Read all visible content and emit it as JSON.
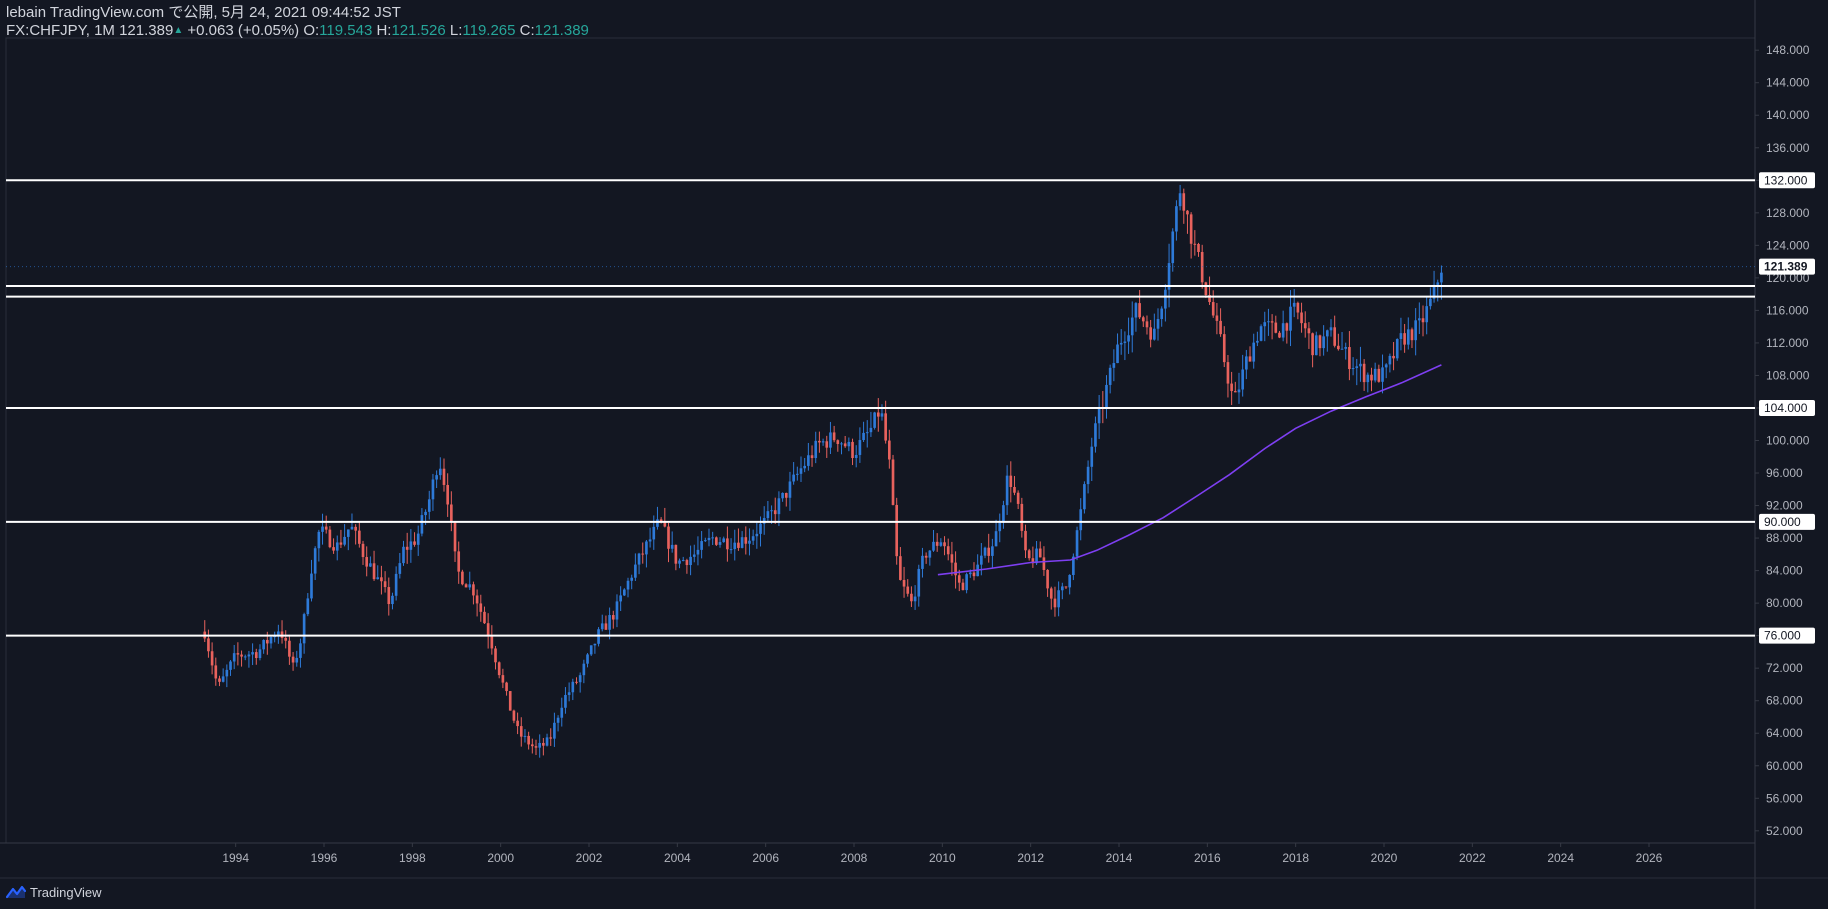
{
  "header": {
    "line1": "lebain TradingView.com で公開, 5月 24, 2021 09:44:52 JST",
    "symbol": "FX:CHFJPY, 1M",
    "last": "121.389",
    "change_arrow": "▲",
    "change": "+0.063 (+0.05%)",
    "o_label": "O:",
    "o_value": "119.543",
    "h_label": "H:",
    "h_value": "121.526",
    "l_label": "L:",
    "l_value": "119.265",
    "c_label": "C:",
    "c_value": "121.389"
  },
  "footer": {
    "brand": "TradingView"
  },
  "colors": {
    "background": "#131722",
    "up": "#2e7ad8",
    "down": "#e8625d",
    "ma": "#7e3ff2",
    "level": "#ffffff",
    "axis_text": "#b2b5be"
  },
  "chart_data": {
    "type": "candlestick",
    "title": "",
    "xlabel": "",
    "ylabel": "",
    "y_ticks": [
      "52.000",
      "56.000",
      "60.000",
      "64.000",
      "68.000",
      "72.000",
      "76.000",
      "80.000",
      "84.000",
      "88.000",
      "92.000",
      "96.000",
      "100.000",
      "104.000",
      "108.000",
      "112.000",
      "116.000",
      "120.000",
      "124.000",
      "128.000",
      "132.000",
      "136.000",
      "140.000",
      "144.000",
      "148.000"
    ],
    "ylim": [
      50.5,
      149.5
    ],
    "x_ticks": [
      "1994",
      "1996",
      "1998",
      "2000",
      "2002",
      "2004",
      "2006",
      "2008",
      "2010",
      "2012",
      "2014",
      "2016",
      "2018",
      "2020",
      "2022",
      "2024",
      "2026"
    ],
    "xlim": [
      1988.8,
      2028.4
    ],
    "horizontal_levels": [
      {
        "value": 132.0,
        "label": "132.000"
      },
      {
        "value": 119.0,
        "label": null
      },
      {
        "value": 117.7,
        "label": null
      },
      {
        "value": 104.0,
        "label": "104.000"
      },
      {
        "value": 90.0,
        "label": "90.000"
      },
      {
        "value": 76.0,
        "label": "76.000"
      }
    ],
    "last_price": {
      "value": 121.389,
      "label": "121.389"
    },
    "moving_average": {
      "x": [
        2009.9,
        2011.0,
        2012.0,
        2012.9,
        2013.5,
        2014.2,
        2015.0,
        2015.8,
        2016.5,
        2017.3,
        2018.0,
        2018.8,
        2019.6,
        2020.4,
        2021.3
      ],
      "y": [
        83.5,
        84.2,
        85.0,
        85.3,
        86.5,
        88.3,
        90.5,
        93.3,
        95.8,
        99.0,
        101.5,
        103.6,
        105.4,
        107.1,
        109.3
      ]
    },
    "price_path": {
      "x": [
        1993.3,
        1993.6,
        1994.0,
        1994.5,
        1995.0,
        1995.3,
        1995.5,
        1995.7,
        1995.9,
        1996.3,
        1996.6,
        1996.9,
        1997.2,
        1997.5,
        1997.8,
        1998.1,
        1998.4,
        1998.6,
        1998.8,
        1999.0,
        1999.4,
        1999.8,
        2000.1,
        2000.4,
        2000.8,
        2001.1,
        2001.4,
        2001.8,
        2002.2,
        2002.6,
        2003.0,
        2003.3,
        2003.6,
        2004.0,
        2004.4,
        2004.8,
        2005.2,
        2005.6,
        2006.0,
        2006.4,
        2006.8,
        2007.2,
        2007.6,
        2008.0,
        2008.4,
        2008.6,
        2008.8,
        2009.0,
        2009.3,
        2009.6,
        2010.0,
        2010.4,
        2010.8,
        2011.2,
        2011.5,
        2011.7,
        2011.9,
        2012.2,
        2012.5,
        2012.8,
        2013.1,
        2013.4,
        2013.8,
        2014.0,
        2014.4,
        2014.8,
        2015.0,
        2015.2,
        2015.4,
        2015.6,
        2015.8,
        2016.0,
        2016.3,
        2016.6,
        2016.9,
        2017.2,
        2017.6,
        2018.0,
        2018.4,
        2018.8,
        2019.2,
        2019.6,
        2020.0,
        2020.4,
        2020.8,
        2021.1,
        2021.3
      ],
      "y": [
        76.5,
        69.5,
        73.5,
        74.0,
        77.0,
        72.0,
        76.0,
        84.0,
        89.0,
        87.0,
        89.5,
        86.0,
        83.0,
        80.0,
        86.5,
        88.0,
        93.0,
        98.0,
        93.0,
        84.0,
        81.5,
        75.0,
        69.0,
        64.0,
        62.0,
        63.0,
        68.0,
        71.0,
        76.0,
        79.0,
        84.0,
        87.0,
        90.0,
        85.0,
        86.0,
        88.0,
        87.5,
        88.0,
        90.0,
        93.0,
        96.5,
        99.5,
        100.5,
        98.5,
        101.5,
        104.0,
        97.0,
        83.0,
        80.0,
        86.0,
        88.0,
        82.0,
        84.5,
        88.0,
        96.0,
        92.0,
        85.0,
        86.0,
        80.0,
        82.0,
        90.0,
        100.0,
        108.0,
        112.0,
        116.0,
        113.0,
        118.0,
        125.0,
        131.5,
        126.0,
        122.0,
        118.0,
        112.0,
        104.5,
        110.0,
        114.0,
        113.5,
        116.0,
        111.5,
        113.0,
        110.0,
        108.0,
        108.0,
        112.5,
        114.0,
        117.5,
        121.4
      ]
    }
  }
}
